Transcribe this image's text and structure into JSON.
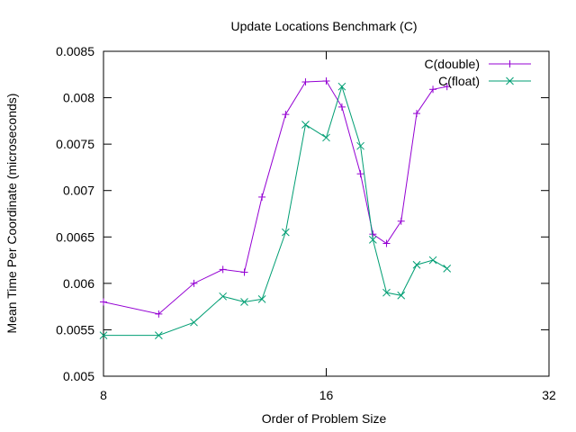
{
  "chart_data": {
    "type": "line",
    "title": "Update Locations Benchmark (C)",
    "xlabel": "Order of Problem Size",
    "ylabel": "Mean Time Per Coordinate (microseconds)",
    "x_scale": "log2",
    "xlim": [
      8,
      32
    ],
    "ylim": [
      0.005,
      0.0085
    ],
    "x_ticks": [
      8,
      16,
      32
    ],
    "x_tick_labels": [
      "8",
      "16",
      "32"
    ],
    "y_ticks": [
      0.005,
      0.0055,
      0.006,
      0.0065,
      0.007,
      0.0075,
      0.008,
      0.0085
    ],
    "y_tick_labels": [
      "0.005",
      "0.0055",
      "0.006",
      "0.0065",
      "0.007",
      "0.0075",
      "0.008",
      "0.0085"
    ],
    "grid": false,
    "legend_position": "top-right",
    "series": [
      {
        "name": "C(double)",
        "color": "#9400d3",
        "marker": "plus",
        "x": [
          8,
          9.5,
          10.6,
          11.6,
          12.4,
          13.1,
          14.1,
          15,
          16,
          16.8,
          17.8,
          18.5,
          19.3,
          20.2,
          21.2,
          22.3,
          23.3
        ],
        "y": [
          0.0058,
          0.00567,
          0.006,
          0.00615,
          0.00612,
          0.00693,
          0.00782,
          0.00817,
          0.00818,
          0.0079,
          0.00718,
          0.00653,
          0.00643,
          0.00667,
          0.00783,
          0.00809,
          0.00812
        ]
      },
      {
        "name": "C(float)",
        "color": "#009e73",
        "marker": "cross",
        "x": [
          8,
          9.5,
          10.6,
          11.6,
          12.4,
          13.1,
          14.1,
          15,
          16,
          16.8,
          17.8,
          18.5,
          19.3,
          20.2,
          21.2,
          22.3,
          23.3
        ],
        "y": [
          0.00544,
          0.00544,
          0.00558,
          0.00586,
          0.0058,
          0.00583,
          0.00655,
          0.00771,
          0.00757,
          0.00812,
          0.00748,
          0.00647,
          0.0059,
          0.00587,
          0.0062,
          0.00625,
          0.00616
        ]
      }
    ]
  }
}
